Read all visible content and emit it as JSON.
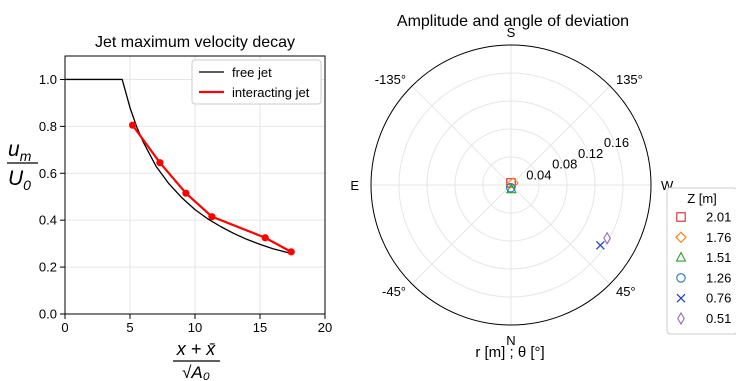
{
  "chart_data": [
    {
      "type": "line",
      "title": "Jet maximum velocity decay",
      "xlabel_num": "x + x̄",
      "xlabel_den": "√A₀",
      "ylabel_num": "u",
      "ylabel_num_sub": "m",
      "ylabel_den": "U",
      "ylabel_den_sub": "0",
      "xlim": [
        0,
        20
      ],
      "ylim": [
        0,
        1.1
      ],
      "xticks": [
        0,
        5,
        10,
        15,
        20
      ],
      "yticks": [
        0.0,
        0.2,
        0.4,
        0.6,
        0.8,
        1.0
      ],
      "xtick_labels": [
        "0",
        "5",
        "10",
        "15",
        "20"
      ],
      "ytick_labels": [
        "0.0",
        "0.2",
        "0.4",
        "0.6",
        "0.8",
        "1.0"
      ],
      "grid": true,
      "legend_position": "top-right",
      "series": [
        {
          "name": "free jet",
          "color": "#000000",
          "marker": "none",
          "x": [
            0,
            4.4,
            4.6,
            5.0,
            5.5,
            6.0,
            7.0,
            8.0,
            9.0,
            10.0,
            11.0,
            12.0,
            13.0,
            14.0,
            15.0,
            16.0,
            17.4
          ],
          "y": [
            1.0,
            1.0,
            0.96,
            0.88,
            0.8,
            0.735,
            0.63,
            0.555,
            0.495,
            0.445,
            0.405,
            0.372,
            0.343,
            0.318,
            0.297,
            0.278,
            0.258
          ]
        },
        {
          "name": "interacting jet",
          "color": "#ff0000",
          "marker": "circle",
          "x": [
            5.2,
            7.3,
            9.3,
            11.3,
            15.4,
            17.4
          ],
          "y": [
            0.805,
            0.645,
            0.515,
            0.415,
            0.325,
            0.265
          ]
        }
      ]
    },
    {
      "type": "scatter",
      "polar": true,
      "title": "Amplitude and angle of deviation",
      "xlabel": "r [m] ; θ [°]",
      "rlim": [
        0,
        0.2
      ],
      "rticks": [
        0.04,
        0.08,
        0.12,
        0.16
      ],
      "rtick_labels": [
        "0.04",
        "0.08",
        "0.12",
        "0.16"
      ],
      "angle_labels": {
        "top": "S",
        "bottom": "N",
        "left": "E",
        "right": "W",
        "upper_left": "-135°",
        "upper_right": "135°",
        "lower_left": "-45°",
        "lower_right": "45°"
      },
      "grid": true,
      "legend_title": "Z [m]",
      "legend_position": "right",
      "series": [
        {
          "name": "2.01",
          "marker": "square",
          "color": "#d62728",
          "r": 0.003,
          "theta_deg": 180
        },
        {
          "name": "1.76",
          "marker": "diamond",
          "color": "#ff7f0e",
          "r": 0.004,
          "theta_deg": 135
        },
        {
          "name": "1.51",
          "marker": "triangle",
          "color": "#2ca02c",
          "r": 0.006,
          "theta_deg": 5
        },
        {
          "name": "1.26",
          "marker": "circle",
          "color": "#1f77b4",
          "r": 0.004,
          "theta_deg": -5
        },
        {
          "name": "0.76",
          "marker": "x",
          "color": "#1f3fbf",
          "r": 0.154,
          "theta_deg": 56
        },
        {
          "name": "0.51",
          "marker": "thin_diamond",
          "color": "#9467bd",
          "r": 0.157,
          "theta_deg": 61
        }
      ]
    }
  ]
}
